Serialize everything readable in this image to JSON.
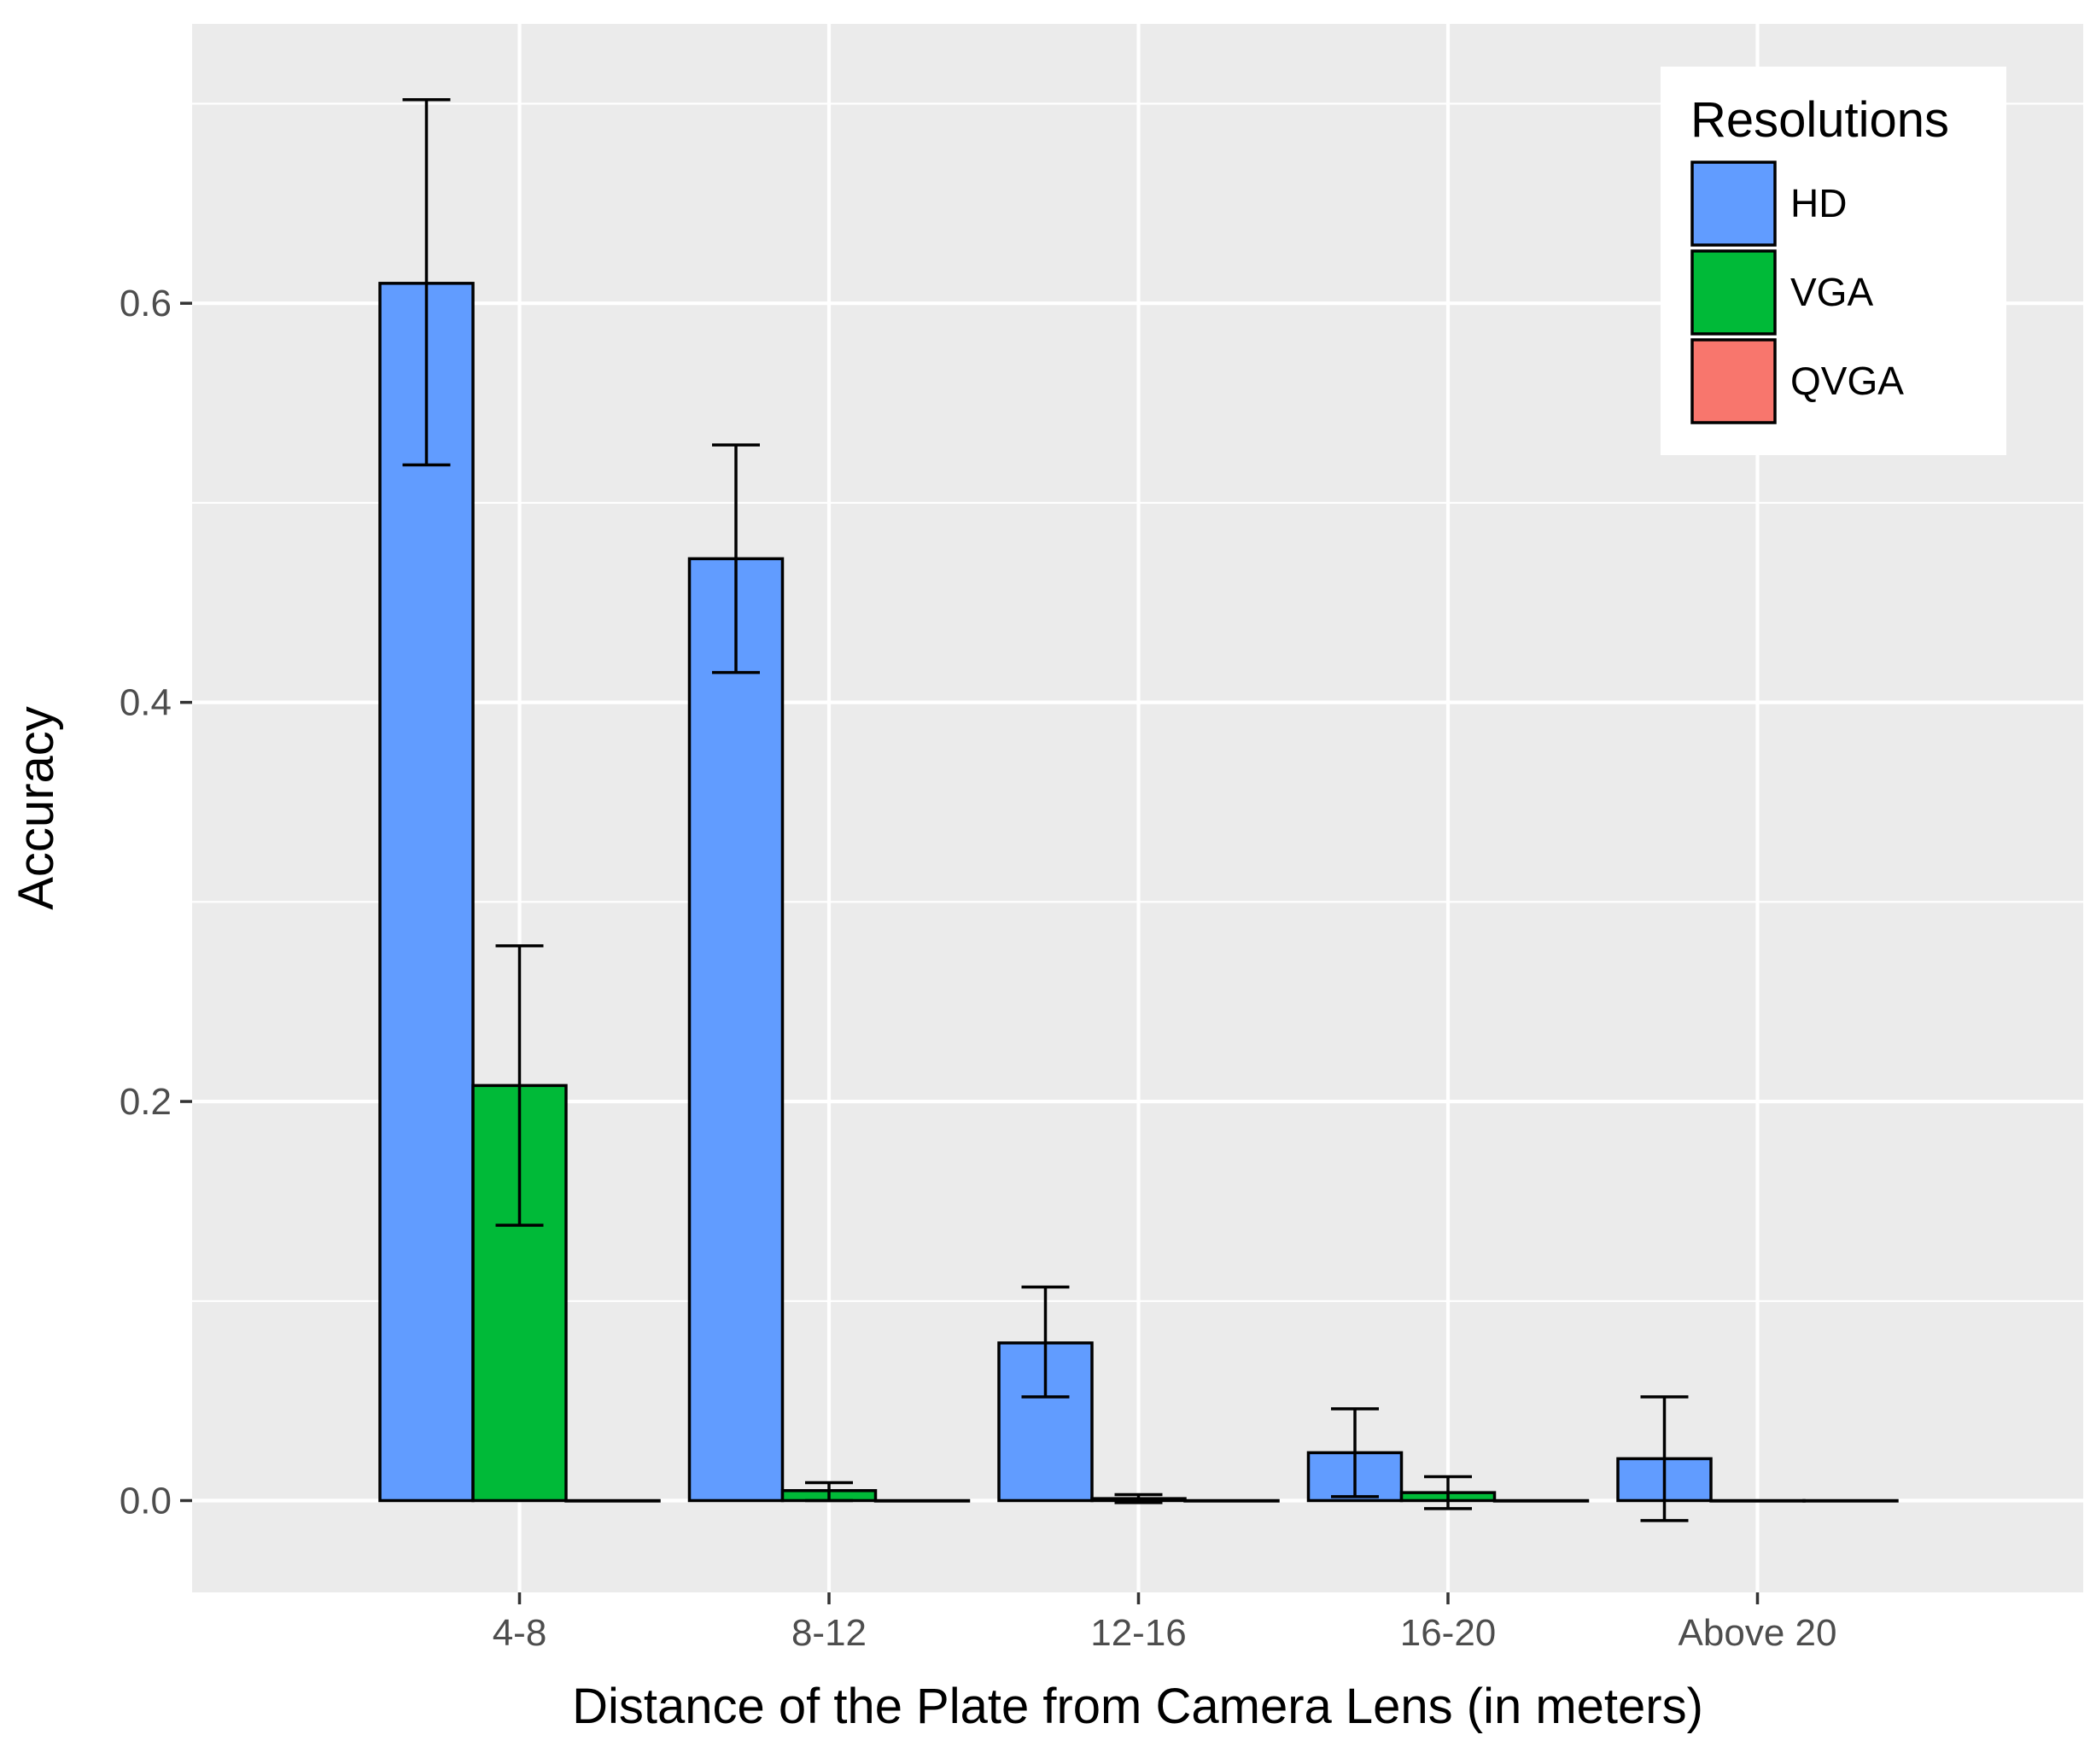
{
  "chart_data": {
    "type": "bar",
    "xlabel": "Distance of the Plate from Camera Lens (in meters)",
    "ylabel": "Accuracy",
    "categories": [
      "4-8",
      "8-12",
      "12-16",
      "16-20",
      "Above 20"
    ],
    "ylim": [
      -0.046,
      0.74
    ],
    "y_ticks": [
      0.0,
      0.2,
      0.4,
      0.6
    ],
    "y_tick_labels": [
      "0.0",
      "0.2",
      "0.4",
      "0.6"
    ],
    "grid": true,
    "legend": {
      "title": "Resolutions",
      "placement": "top-right"
    },
    "series": [
      {
        "name": "HD",
        "color": "#619CFF",
        "values": [
          0.61,
          0.472,
          0.079,
          0.024,
          0.021
        ],
        "error_low": [
          0.519,
          0.415,
          0.052,
          0.002,
          -0.01
        ],
        "error_high": [
          0.702,
          0.529,
          0.107,
          0.046,
          0.052
        ]
      },
      {
        "name": "VGA",
        "color": "#00BA38",
        "values": [
          0.208,
          0.005,
          0.001,
          0.004,
          0.0
        ],
        "error_low": [
          0.138,
          0.0,
          -0.001,
          -0.004,
          0.0
        ],
        "error_high": [
          0.278,
          0.009,
          0.003,
          0.012,
          0.0
        ]
      },
      {
        "name": "QVGA",
        "color": "#F8766D",
        "values": [
          0.0,
          0.0,
          0.0,
          0.0,
          0.0
        ],
        "error_low": [
          0.0,
          0.0,
          0.0,
          0.0,
          0.0
        ],
        "error_high": [
          0.0,
          0.0,
          0.0,
          0.0,
          0.0
        ]
      }
    ]
  }
}
